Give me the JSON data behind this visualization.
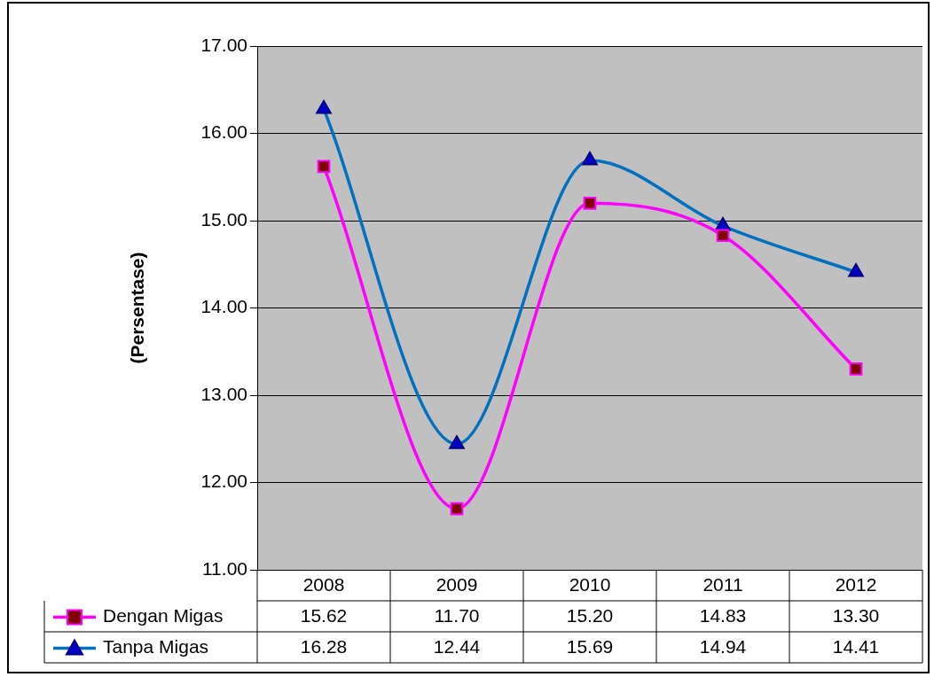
{
  "chart_data": {
    "type": "line",
    "ylabel": "(Persentase)",
    "categories": [
      "2008",
      "2009",
      "2010",
      "2011",
      "2012"
    ],
    "ylim": [
      11,
      17
    ],
    "yticks": [
      {
        "value": 11,
        "label": "11.00"
      },
      {
        "value": 12,
        "label": "12.00"
      },
      {
        "value": 13,
        "label": "13.00"
      },
      {
        "value": 14,
        "label": "14.00"
      },
      {
        "value": 15,
        "label": "15.00"
      },
      {
        "value": 16,
        "label": "16.00"
      },
      {
        "value": 17,
        "label": "17.00"
      }
    ],
    "grid": "y",
    "legend": "bottom",
    "series": [
      {
        "name": "Dengan Migas",
        "color": "#ff00ff",
        "marker": "square",
        "values": [
          15.62,
          11.7,
          15.2,
          14.83,
          13.3
        ],
        "value_labels": [
          "15.62",
          "11.70",
          "15.20",
          "14.83",
          "13.30"
        ]
      },
      {
        "name": "Tanpa Migas",
        "color": "#0070c0",
        "marker": "triangle",
        "values": [
          16.28,
          12.44,
          15.69,
          14.94,
          14.41
        ],
        "value_labels": [
          "16.28",
          "12.44",
          "15.69",
          "14.94",
          "14.41"
        ]
      }
    ]
  }
}
